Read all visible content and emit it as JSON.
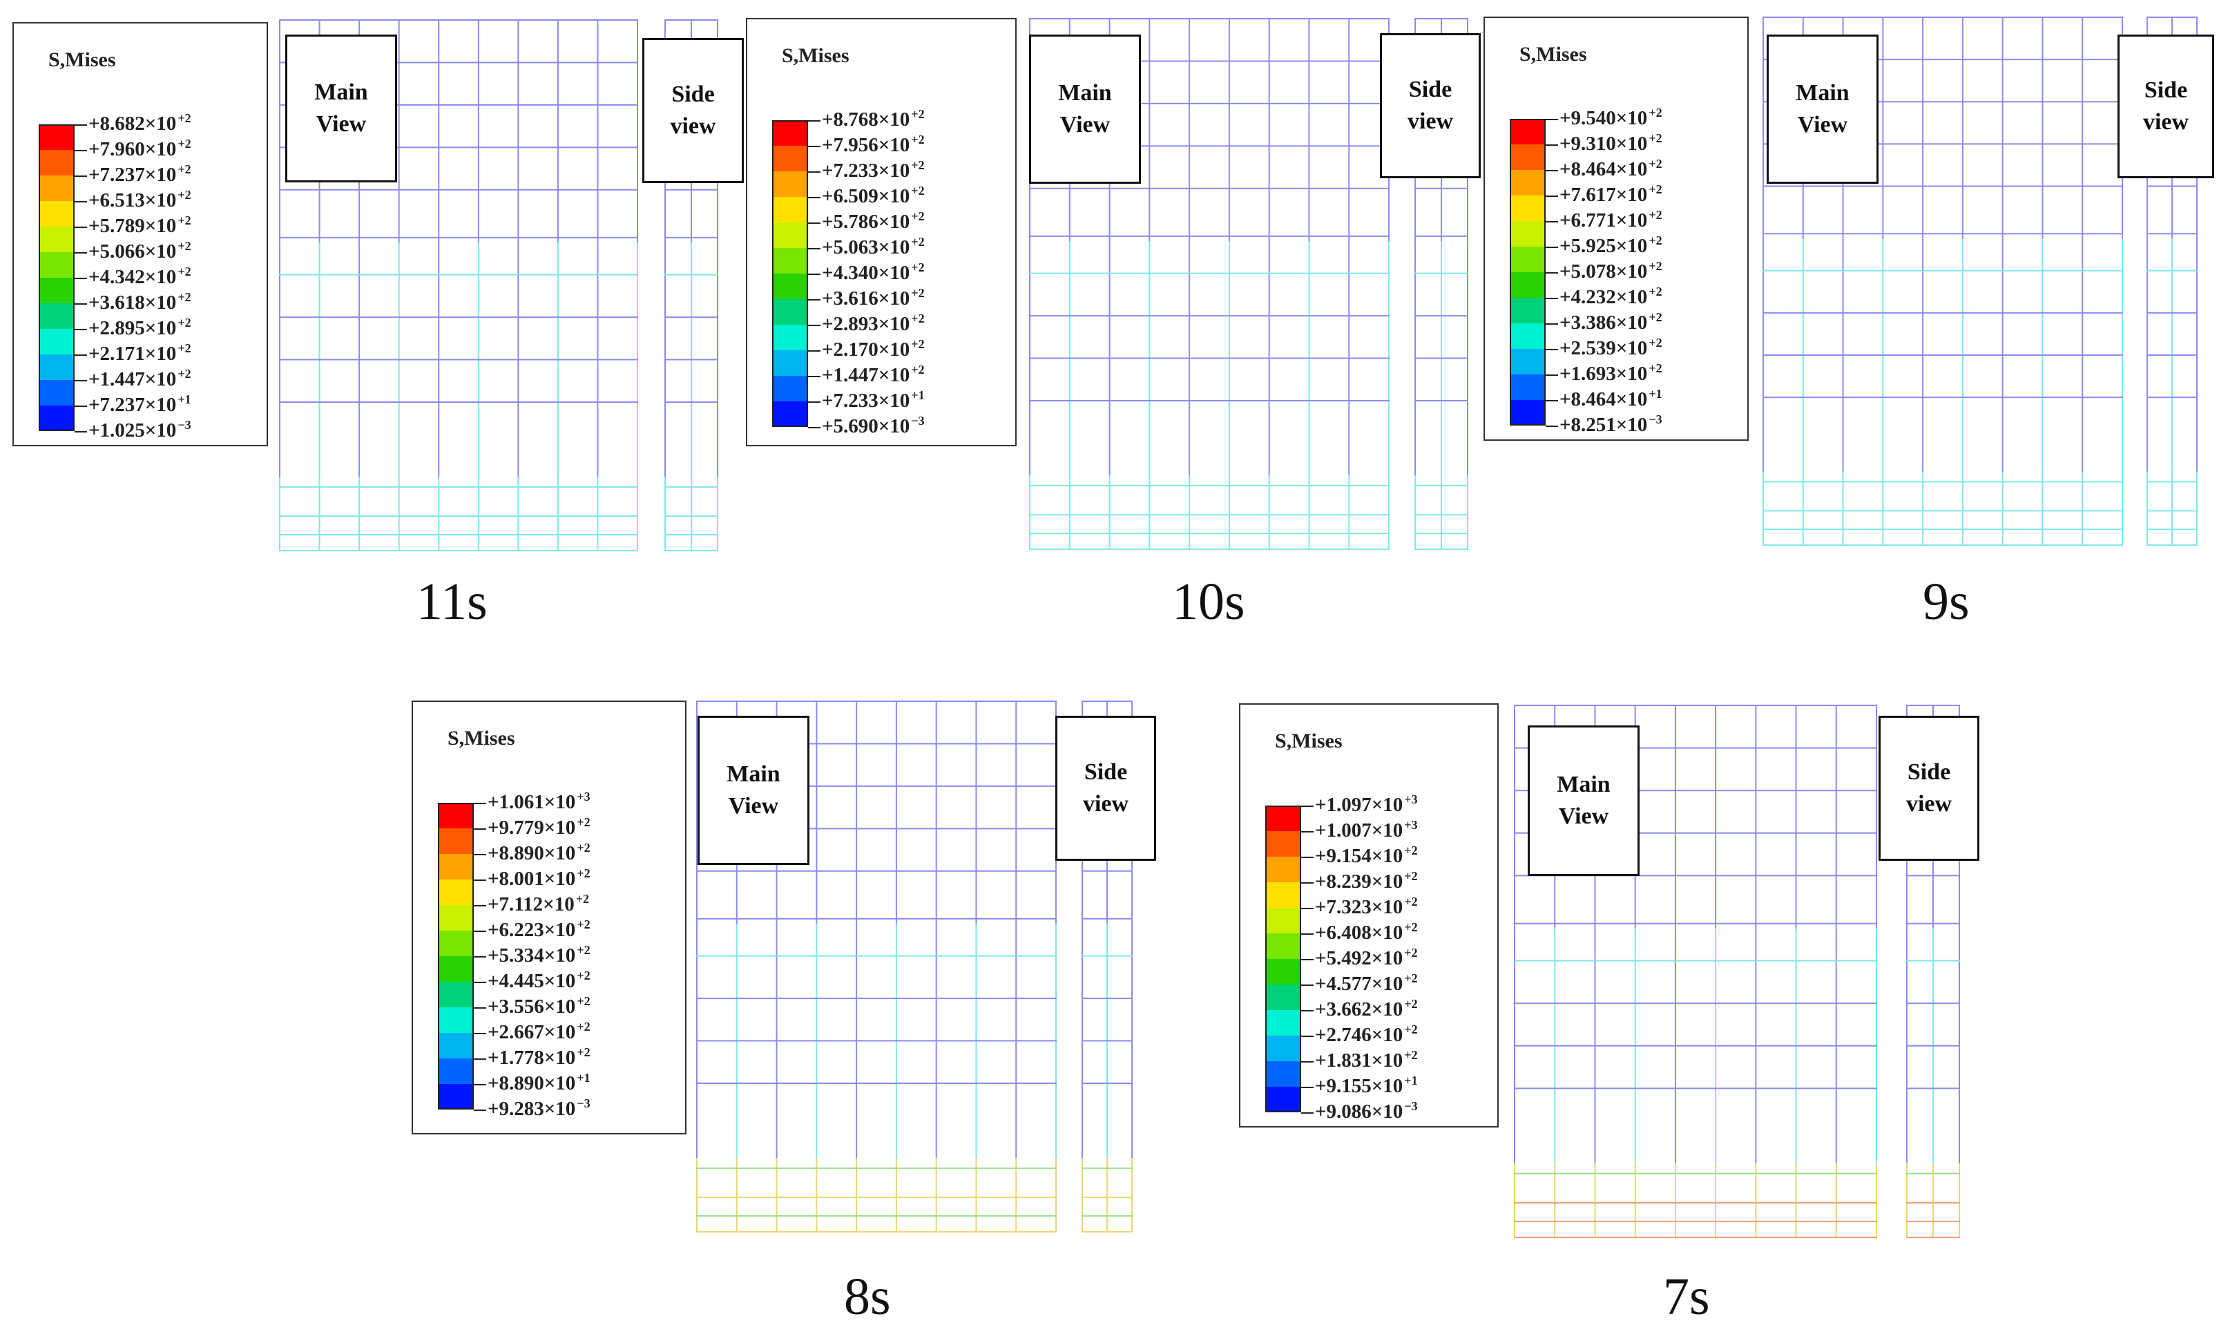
{
  "legend_title": "S,Mises",
  "legend_colors": [
    "#ff0000",
    "#ff5a00",
    "#ffa300",
    "#ffe000",
    "#c8f000",
    "#78e600",
    "#28d200",
    "#00d27a",
    "#00f0d2",
    "#00b4f0",
    "#0064ff",
    "#0014ff"
  ],
  "panels": [
    {
      "time": "11s",
      "main_label": "Main\nView",
      "side_label": "Side\nview",
      "legend_values": [
        [
          "+8.682×10",
          "+2"
        ],
        [
          "+7.960×10",
          "+2"
        ],
        [
          "+7.237×10",
          "+2"
        ],
        [
          "+6.513×10",
          "+2"
        ],
        [
          "+5.789×10",
          "+2"
        ],
        [
          "+5.066×10",
          "+2"
        ],
        [
          "+4.342×10",
          "+2"
        ],
        [
          "+3.618×10",
          "+2"
        ],
        [
          "+2.895×10",
          "+2"
        ],
        [
          "+2.171×10",
          "+2"
        ],
        [
          "+1.447×10",
          "+2"
        ],
        [
          "+7.237×10",
          "+1"
        ],
        [
          "+1.025×10",
          "−3"
        ]
      ]
    },
    {
      "time": "10s",
      "main_label": "Main\nView",
      "side_label": "Side\nview",
      "legend_values": [
        [
          "+8.768×10",
          "+2"
        ],
        [
          "+7.956×10",
          "+2"
        ],
        [
          "+7.233×10",
          "+2"
        ],
        [
          "+6.509×10",
          "+2"
        ],
        [
          "+5.786×10",
          "+2"
        ],
        [
          "+5.063×10",
          "+2"
        ],
        [
          "+4.340×10",
          "+2"
        ],
        [
          "+3.616×10",
          "+2"
        ],
        [
          "+2.893×10",
          "+2"
        ],
        [
          "+2.170×10",
          "+2"
        ],
        [
          "+1.447×10",
          "+2"
        ],
        [
          "+7.233×10",
          "+1"
        ],
        [
          "+5.690×10",
          "−3"
        ]
      ]
    },
    {
      "time": "9s",
      "main_label": "Main\nView",
      "side_label": "Side\nview",
      "legend_values": [
        [
          "+9.540×10",
          "+2"
        ],
        [
          "+9.310×10",
          "+2"
        ],
        [
          "+8.464×10",
          "+2"
        ],
        [
          "+7.617×10",
          "+2"
        ],
        [
          "+6.771×10",
          "+2"
        ],
        [
          "+5.925×10",
          "+2"
        ],
        [
          "+5.078×10",
          "+2"
        ],
        [
          "+4.232×10",
          "+2"
        ],
        [
          "+3.386×10",
          "+2"
        ],
        [
          "+2.539×10",
          "+2"
        ],
        [
          "+1.693×10",
          "+2"
        ],
        [
          "+8.464×10",
          "+1"
        ],
        [
          "+8.251×10",
          "−3"
        ]
      ]
    },
    {
      "time": "8s",
      "main_label": "Main\nView",
      "side_label": "Side\nview",
      "legend_values": [
        [
          "+1.061×10",
          "+3"
        ],
        [
          "+9.779×10",
          "+2"
        ],
        [
          "+8.890×10",
          "+2"
        ],
        [
          "+8.001×10",
          "+2"
        ],
        [
          "+7.112×10",
          "+2"
        ],
        [
          "+6.223×10",
          "+2"
        ],
        [
          "+5.334×10",
          "+2"
        ],
        [
          "+4.445×10",
          "+2"
        ],
        [
          "+3.556×10",
          "+2"
        ],
        [
          "+2.667×10",
          "+2"
        ],
        [
          "+1.778×10",
          "+2"
        ],
        [
          "+8.890×10",
          "+1"
        ],
        [
          "+9.283×10",
          "−3"
        ]
      ]
    },
    {
      "time": "7s",
      "main_label": "Main\nView",
      "side_label": "Side\nview",
      "legend_values": [
        [
          "+1.097×10",
          "+3"
        ],
        [
          "+1.007×10",
          "+3"
        ],
        [
          "+9.154×10",
          "+2"
        ],
        [
          "+8.239×10",
          "+2"
        ],
        [
          "+7.323×10",
          "+2"
        ],
        [
          "+6.408×10",
          "+2"
        ],
        [
          "+5.492×10",
          "+2"
        ],
        [
          "+4.577×10",
          "+2"
        ],
        [
          "+3.662×10",
          "+2"
        ],
        [
          "+2.746×10",
          "+2"
        ],
        [
          "+1.831×10",
          "+2"
        ],
        [
          "+9.155×10",
          "+1"
        ],
        [
          "+9.086×10",
          "−3"
        ]
      ]
    }
  ]
}
